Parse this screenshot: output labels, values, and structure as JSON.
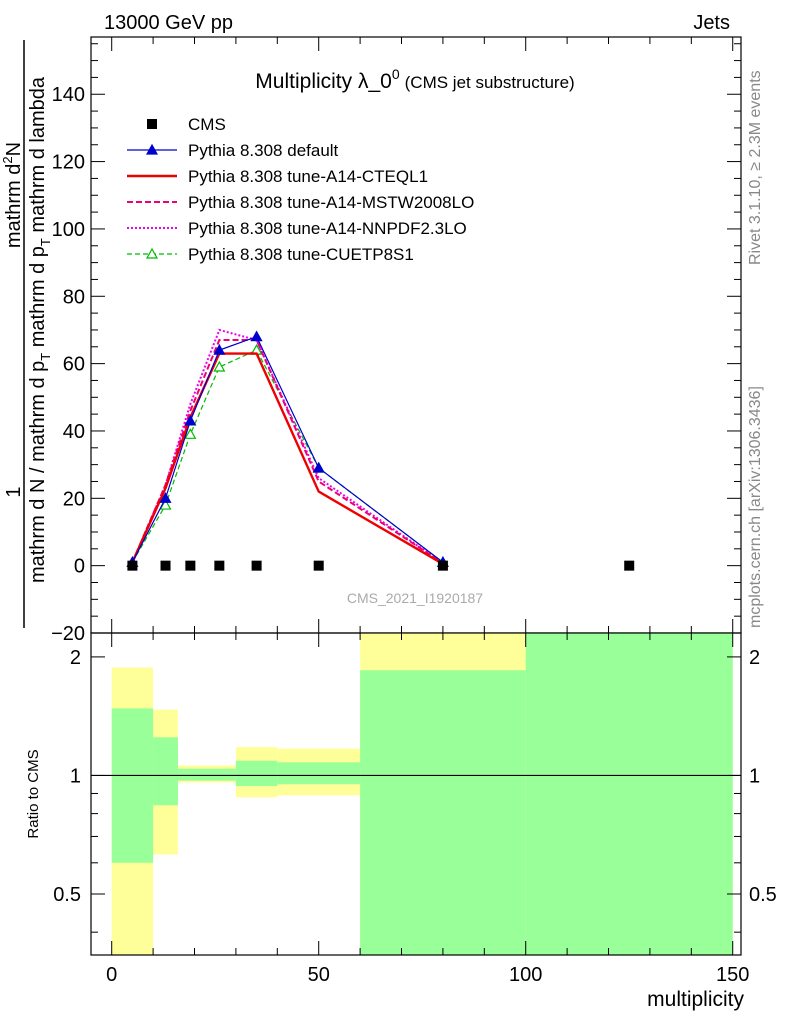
{
  "header": {
    "left": "13000 GeV pp",
    "right": "Jets"
  },
  "title": {
    "main": "Multiplicity λ_0",
    "sup": "0",
    "sub": "(CMS jet substructure)"
  },
  "watermark": "CMS_2021_I1920187",
  "side": {
    "rivet": "Rivet 3.1.10, ≥ 2.3M events",
    "mcplots": "mcplots.cern.ch [arXiv:1306.3436]"
  },
  "ylabel_main": {
    "numerator_small": "1",
    "numerator": "mathrm d",
    "numerator_sup": "2",
    "numerator_tail": "N",
    "denominator": "mathrm d N / mathrm d p",
    "denominator_sub": "T",
    "denominator_tail": " mathrm d p",
    "denominator_sub2": "T",
    "denominator_tail2": " mathrm d lambda"
  },
  "ylabel_ratio": "Ratio to CMS",
  "xlabel": "multiplicity",
  "colors": {
    "cms": "#000000",
    "default": "#0000cc",
    "cteql1": "#ee0000",
    "mstw": "#ee0077",
    "nnpdf": "#ee00ee",
    "cuetp8s1": "#00bb00",
    "band_yellow": "#ffff99",
    "band_green": "#99ff99"
  },
  "chart_data": [
    {
      "type": "line",
      "panel": "main",
      "xlim": [
        -5,
        152
      ],
      "ylim": [
        -20,
        157
      ],
      "y_ticks": [
        -20,
        0,
        20,
        40,
        60,
        80,
        100,
        120,
        140
      ],
      "y_tick_labels": [
        "−20",
        "0",
        "20",
        "40",
        "60",
        "80",
        "100",
        "120",
        "140"
      ],
      "legend_position": "top-left",
      "series": [
        {
          "name": "CMS",
          "key": "cms",
          "style": "markers",
          "x": [
            5,
            13,
            19,
            26,
            35,
            50,
            80,
            125
          ],
          "y": [
            0,
            0,
            0,
            0,
            0,
            0,
            0,
            0
          ]
        },
        {
          "name": "Pythia 8.308 default",
          "key": "default",
          "style": "solid",
          "marker": "triangle-filled",
          "x": [
            5,
            13,
            19,
            26,
            35,
            50,
            80
          ],
          "y": [
            1,
            20,
            43,
            64,
            68,
            29,
            1
          ]
        },
        {
          "name": "Pythia 8.308 tune-A14-CTEQL1",
          "key": "cteql1",
          "style": "solid-thick",
          "x": [
            5,
            13,
            19,
            26,
            35,
            50,
            80
          ],
          "y": [
            1,
            23,
            44,
            63,
            63,
            22,
            0.5
          ]
        },
        {
          "name": "Pythia 8.308 tune-A14-MSTW2008LO",
          "key": "mstw",
          "style": "dashed",
          "x": [
            5,
            13,
            19,
            26,
            35,
            50,
            80
          ],
          "y": [
            1,
            24,
            46,
            67,
            67,
            25,
            0.8
          ]
        },
        {
          "name": "Pythia 8.308 tune-A14-NNPDF2.3LO",
          "key": "nnpdf",
          "style": "dotted",
          "x": [
            5,
            13,
            19,
            26,
            35,
            50,
            80
          ],
          "y": [
            1,
            24,
            48,
            70,
            67,
            26,
            0.8
          ]
        },
        {
          "name": "Pythia 8.308 tune-CUETP8S1",
          "key": "cuetp8s1",
          "style": "dashed-thin",
          "marker": "triangle-open",
          "x": [
            5,
            13,
            19,
            26,
            35,
            50,
            80
          ],
          "y": [
            1,
            18,
            39,
            59,
            64,
            29,
            1
          ]
        }
      ]
    },
    {
      "type": "area",
      "panel": "ratio",
      "xlim": [
        -5,
        152
      ],
      "ylim": [
        0.35,
        2.3
      ],
      "y_scale": "log",
      "y_ticks": [
        0.5,
        1,
        2
      ],
      "y_tick_labels": [
        "0.5",
        "1",
        "2"
      ],
      "x_ticks": [
        0,
        50,
        100,
        150
      ],
      "x_tick_labels": [
        "0",
        "50",
        "100",
        "150"
      ],
      "reference_line": 1,
      "bins_yellow": [
        {
          "x0": 0,
          "x1": 10,
          "lo": 0.35,
          "hi": 1.88
        },
        {
          "x0": 10,
          "x1": 16,
          "lo": 0.63,
          "hi": 1.47
        },
        {
          "x0": 16,
          "x1": 30,
          "lo": 0.96,
          "hi": 1.06
        },
        {
          "x0": 30,
          "x1": 40,
          "lo": 0.88,
          "hi": 1.18
        },
        {
          "x0": 40,
          "x1": 60,
          "lo": 0.89,
          "hi": 1.17
        },
        {
          "x0": 60,
          "x1": 100,
          "lo": 0.35,
          "hi": 2.3
        },
        {
          "x0": 100,
          "x1": 150,
          "lo": 0.35,
          "hi": 2.3
        }
      ],
      "bins_green": [
        {
          "x0": 0,
          "x1": 10,
          "lo": 0.6,
          "hi": 1.48
        },
        {
          "x0": 10,
          "x1": 16,
          "lo": 0.84,
          "hi": 1.25
        },
        {
          "x0": 16,
          "x1": 30,
          "lo": 0.97,
          "hi": 1.04
        },
        {
          "x0": 30,
          "x1": 40,
          "lo": 0.94,
          "hi": 1.09
        },
        {
          "x0": 40,
          "x1": 60,
          "lo": 0.95,
          "hi": 1.08
        },
        {
          "x0": 60,
          "x1": 100,
          "lo": 0.35,
          "hi": 1.85
        },
        {
          "x0": 100,
          "x1": 150,
          "lo": 0.35,
          "hi": 2.3
        }
      ]
    }
  ]
}
